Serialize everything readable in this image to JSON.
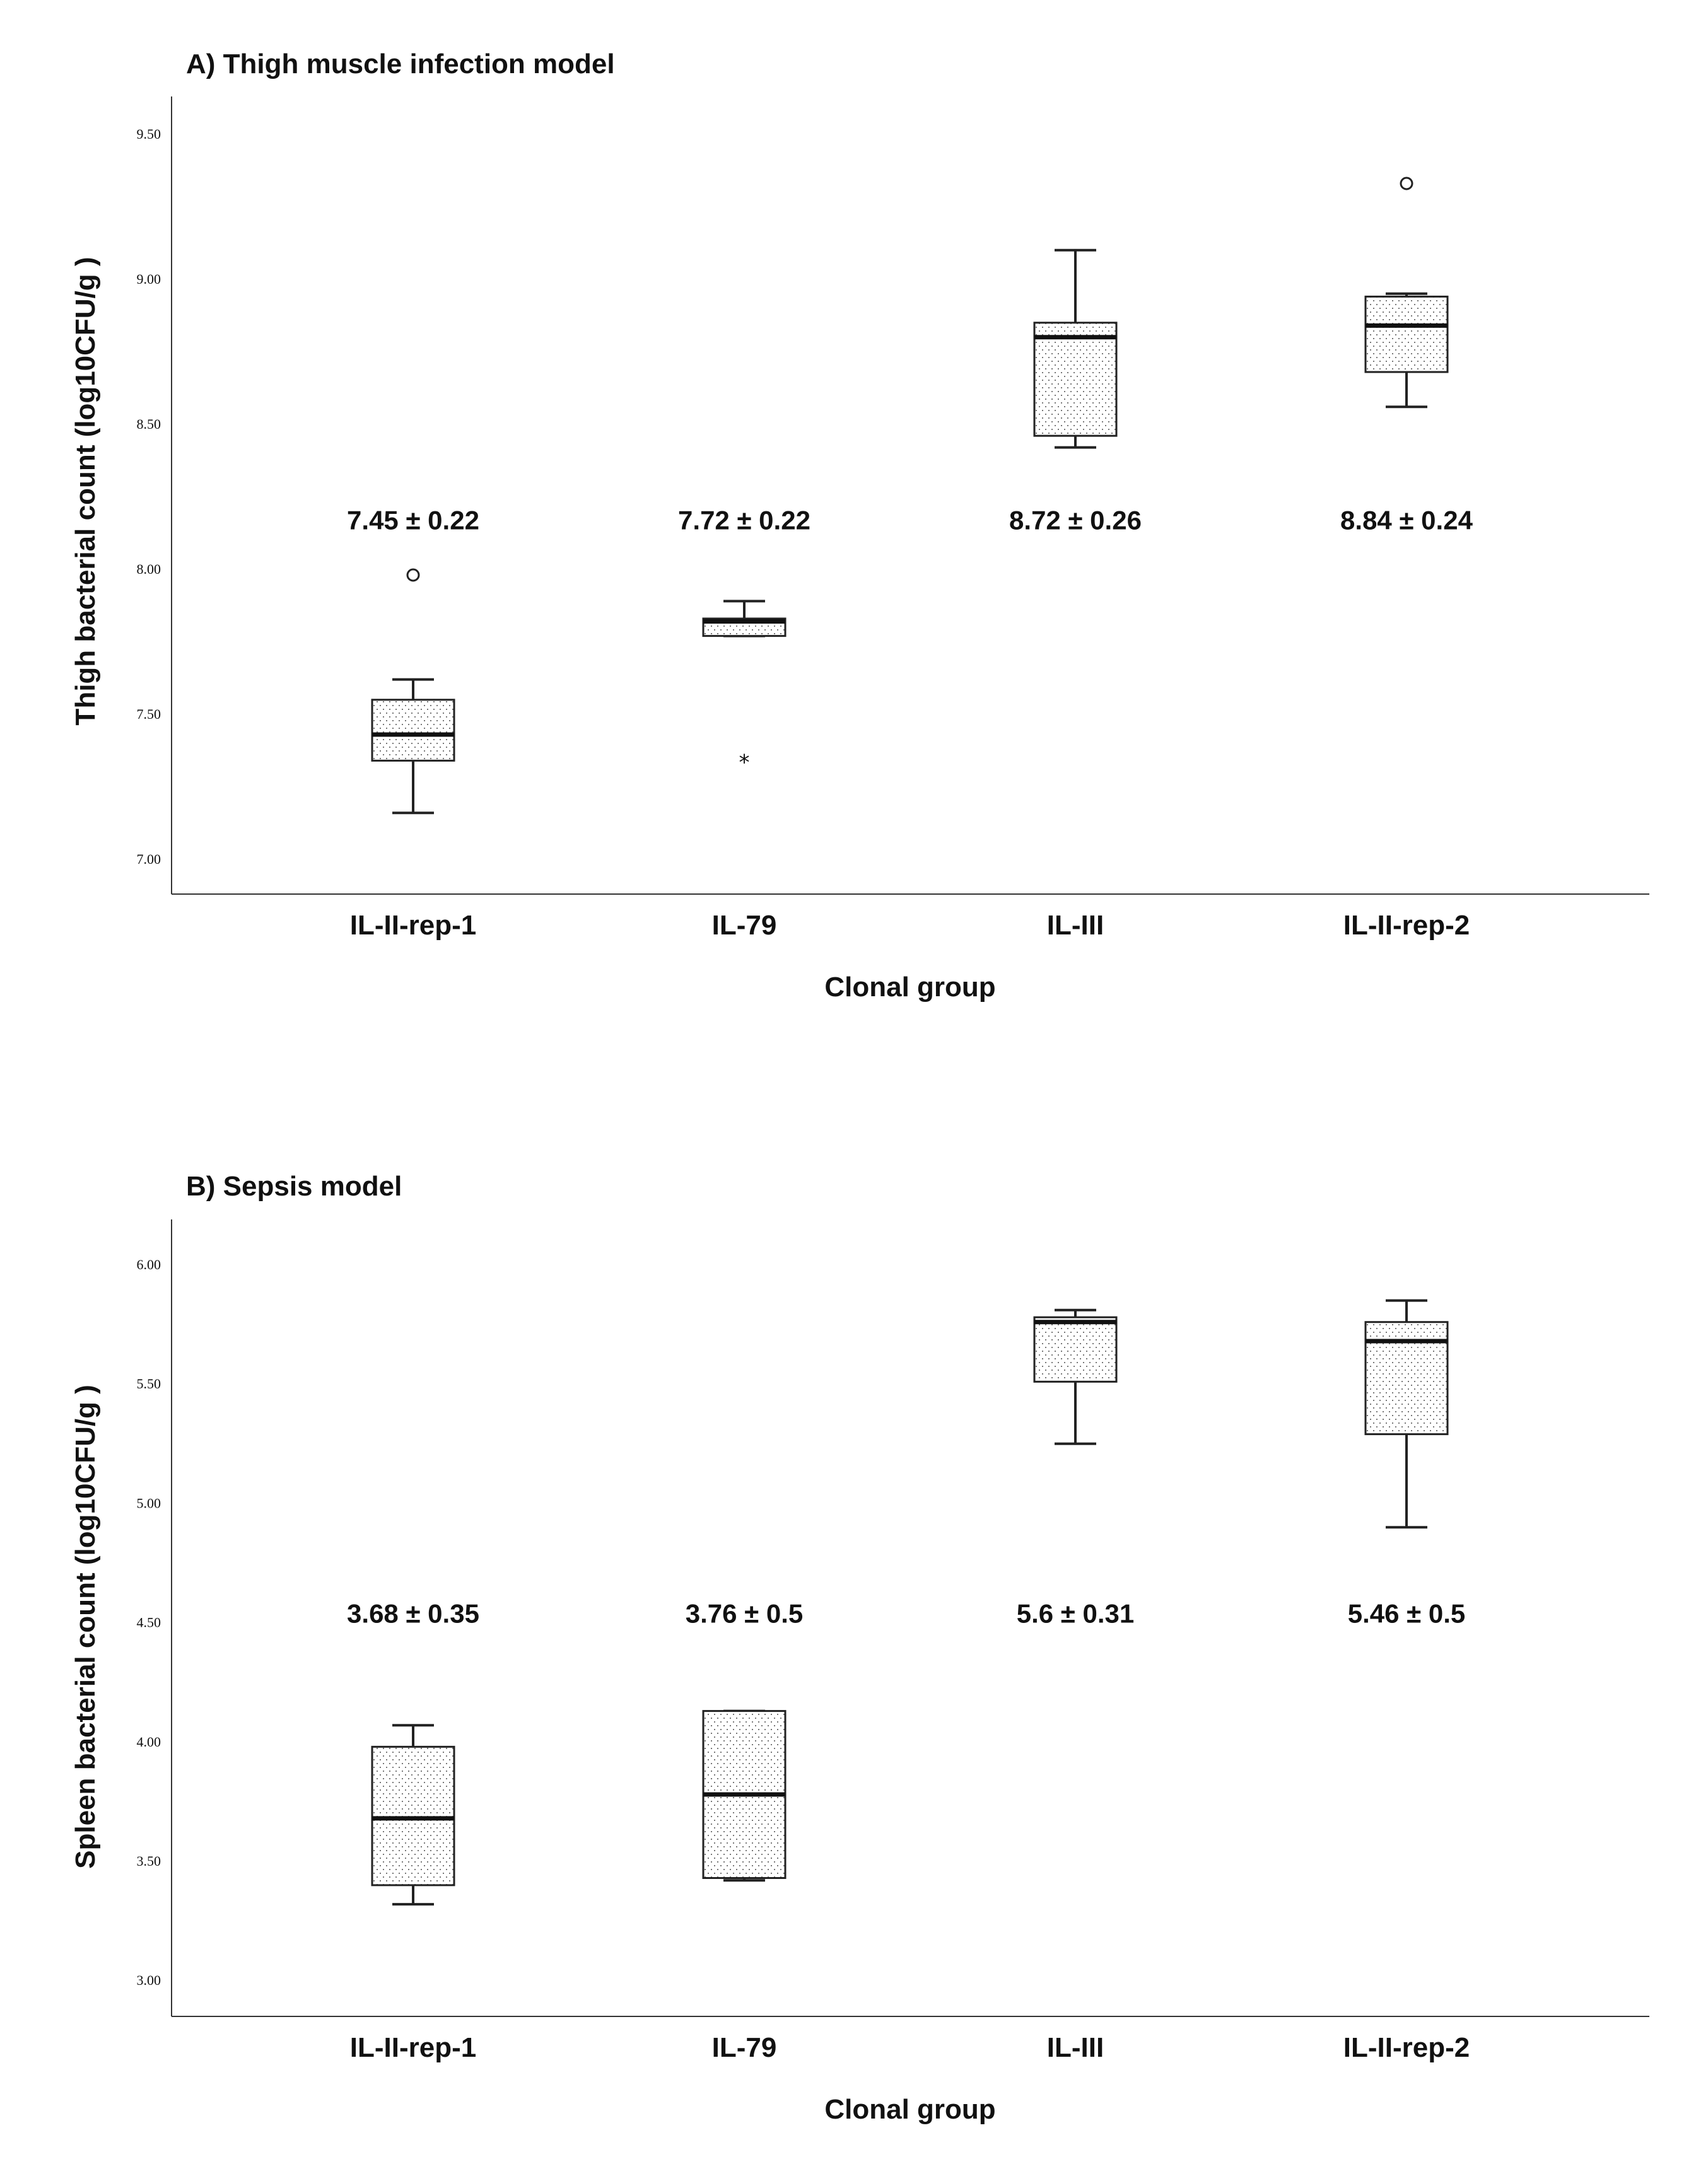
{
  "chart_data": [
    {
      "type": "box",
      "panel": "A",
      "title": "A) Thigh muscle infection model",
      "xlabel": "Clonal group",
      "ylabel": "Thigh bacterial count (log10CFU/g )",
      "ylim": [
        6.88,
        9.63
      ],
      "yticks": [
        "7.00",
        "7.50",
        "8.00",
        "8.50",
        "9.00",
        "9.50"
      ],
      "categories": [
        "IL-II-rep-1",
        "IL-79",
        "IL-III",
        "IL-II-rep-2"
      ],
      "boxes": [
        {
          "min": 7.16,
          "q1": 7.34,
          "median": 7.43,
          "q3": 7.55,
          "max": 7.62,
          "outliers": [
            {
              "value": 7.98,
              "marker": "circle"
            }
          ]
        },
        {
          "min": 7.77,
          "q1": 7.77,
          "median": 7.82,
          "q3": 7.83,
          "max": 7.89,
          "outliers": [
            {
              "value": 7.34,
              "marker": "star"
            }
          ]
        },
        {
          "min": 8.42,
          "q1": 8.46,
          "median": 8.8,
          "q3": 8.85,
          "max": 9.1,
          "outliers": []
        },
        {
          "min": 8.56,
          "q1": 8.68,
          "median": 8.84,
          "q3": 8.94,
          "max": 8.95,
          "outliers": [
            {
              "value": 9.33,
              "marker": "circle"
            }
          ]
        }
      ],
      "annotations": [
        "7.45 ± 0.22",
        "7.72 ± 0.22",
        "8.72 ± 0.26",
        "8.84 ± 0.24"
      ],
      "annotation_y": 8.17
    },
    {
      "type": "box",
      "panel": "B",
      "title": "B) Sepsis model",
      "xlabel": "Clonal group",
      "ylabel": "Spleen bacterial count (log10CFU/g )",
      "ylim": [
        2.85,
        6.19
      ],
      "yticks": [
        "3.00",
        "3.50",
        "4.00",
        "4.50",
        "5.00",
        "5.50",
        "6.00"
      ],
      "categories": [
        "IL-II-rep-1",
        "IL-79",
        "IL-III",
        "IL-II-rep-2"
      ],
      "boxes": [
        {
          "min": 3.32,
          "q1": 3.4,
          "median": 3.68,
          "q3": 3.98,
          "max": 4.07,
          "outliers": []
        },
        {
          "min": 3.42,
          "q1": 3.43,
          "median": 3.78,
          "q3": 4.13,
          "max": 4.13,
          "outliers": []
        },
        {
          "min": 5.25,
          "q1": 5.51,
          "median": 5.76,
          "q3": 5.78,
          "max": 5.81,
          "outliers": []
        },
        {
          "min": 4.9,
          "q1": 5.29,
          "median": 5.68,
          "q3": 5.76,
          "max": 5.85,
          "outliers": []
        }
      ],
      "annotations": [
        "3.68 ± 0.35",
        "3.76 ± 0.5",
        "5.6 ± 0.31",
        "5.46 ± 0.5"
      ],
      "annotation_y": 4.54
    }
  ]
}
